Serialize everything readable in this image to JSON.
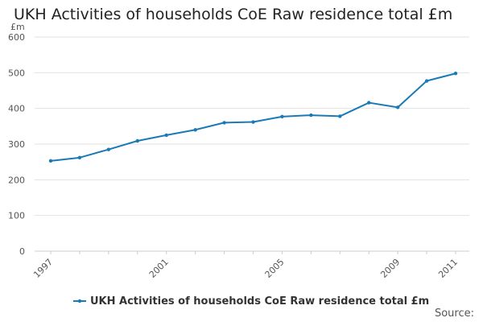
{
  "chart_data": {
    "type": "line",
    "title": "UKH Activities of households CoE Raw residence total £m",
    "ylabel": "£m",
    "xlabel": "",
    "ylim": [
      0,
      600
    ],
    "yticks": [
      0,
      100,
      200,
      300,
      400,
      500,
      600
    ],
    "xtick_labels": [
      "1997",
      "2001",
      "2005",
      "2009",
      "2011"
    ],
    "x": [
      1997,
      1998,
      1999,
      2000,
      2001,
      2002,
      2003,
      2004,
      2005,
      2006,
      2007,
      2008,
      2009,
      2010,
      2011
    ],
    "series": [
      {
        "name": "UKH Activities of households CoE Raw residence total £m",
        "color": "#1a7ab5",
        "values": [
          253,
          262,
          285,
          309,
          325,
          340,
          360,
          362,
          377,
          381,
          378,
          416,
          403,
          477,
          498
        ]
      }
    ],
    "legend_position": "bottom",
    "grid": true
  },
  "source_label": "Source:"
}
